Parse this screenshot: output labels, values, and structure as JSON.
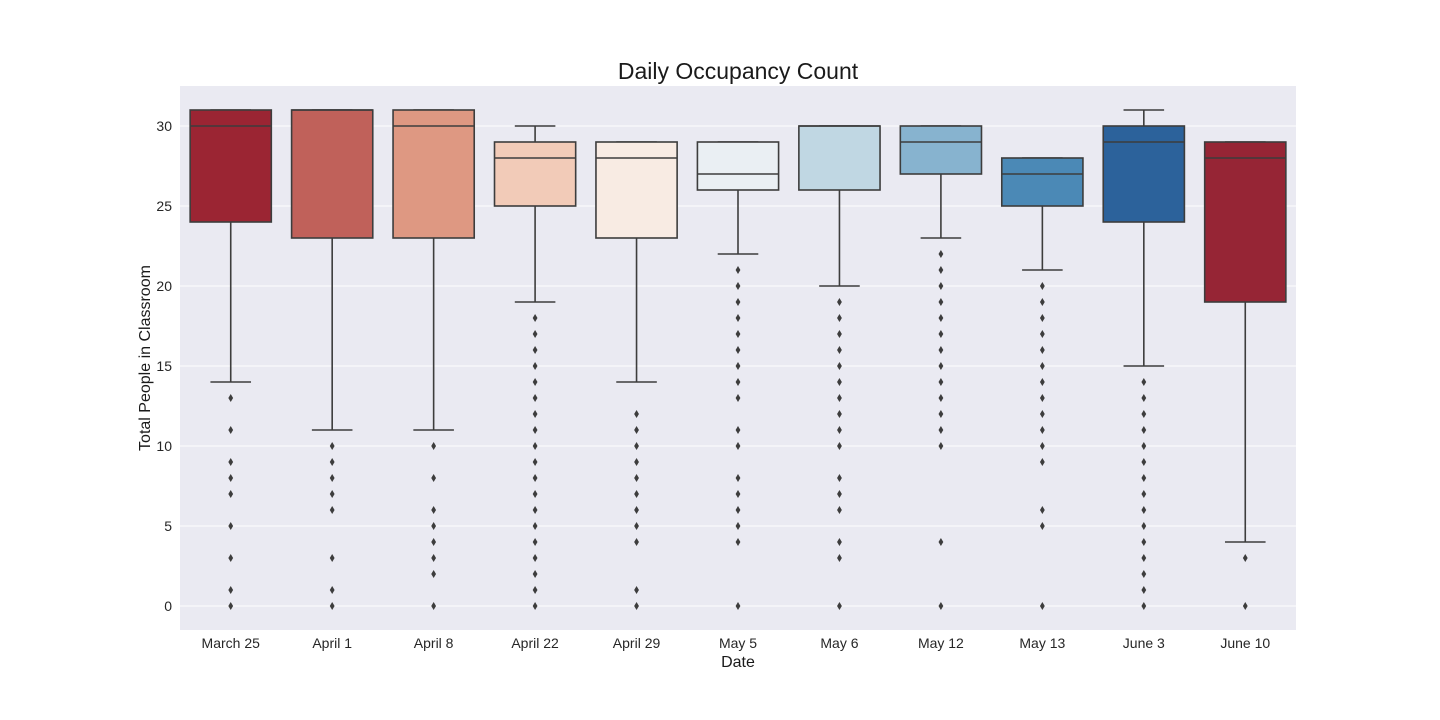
{
  "chart_data": {
    "type": "box",
    "title": "Daily Occupancy Count",
    "xlabel": "Date",
    "ylabel": "Total People in Classroom",
    "ylim": [
      -1.5,
      32.5
    ],
    "yticks": [
      0,
      5,
      10,
      15,
      20,
      25,
      30
    ],
    "grid": true,
    "categories": [
      "March 25",
      "April 1",
      "April 8",
      "April 22",
      "April 29",
      "May 5",
      "May 6",
      "May 12",
      "May 13",
      "June 3",
      "June 10"
    ],
    "colors": [
      "#9b2533",
      "#c0615a",
      "#de9882",
      "#f2cbb8",
      "#f8ebe3",
      "#eaeff3",
      "#c0d7e3",
      "#87b3cf",
      "#4b89b6",
      "#2c629b",
      "#962535"
    ],
    "boxes": [
      {
        "whislo": 14,
        "q1": 24,
        "med": 30,
        "q3": 31,
        "whishi": 31,
        "fliers": [
          0,
          1,
          3,
          5,
          7,
          8,
          9,
          11,
          13
        ]
      },
      {
        "whislo": 11,
        "q1": 23,
        "med": 31,
        "q3": 31,
        "whishi": 31,
        "fliers": [
          0,
          1,
          3,
          6,
          7,
          8,
          9,
          10
        ]
      },
      {
        "whislo": 11,
        "q1": 23,
        "med": 30,
        "q3": 31,
        "whishi": 31,
        "fliers": [
          0,
          2,
          3,
          4,
          5,
          6,
          8,
          10
        ]
      },
      {
        "whislo": 19,
        "q1": 25,
        "med": 28,
        "q3": 29,
        "whishi": 30,
        "fliers": [
          0,
          1,
          2,
          3,
          4,
          5,
          6,
          7,
          8,
          9,
          10,
          11,
          12,
          13,
          14,
          15,
          16,
          17,
          18
        ]
      },
      {
        "whislo": 14,
        "q1": 23,
        "med": 28,
        "q3": 29,
        "whishi": 29,
        "fliers": [
          0,
          1,
          4,
          5,
          6,
          7,
          8,
          9,
          10,
          11,
          12
        ]
      },
      {
        "whislo": 22,
        "q1": 26,
        "med": 27,
        "q3": 29,
        "whishi": 29,
        "fliers": [
          0,
          4,
          5,
          6,
          7,
          8,
          10,
          11,
          13,
          14,
          15,
          16,
          17,
          18,
          19,
          20,
          21
        ]
      },
      {
        "whislo": 20,
        "q1": 26,
        "med": 30,
        "q3": 30,
        "whishi": 30,
        "fliers": [
          0,
          3,
          4,
          6,
          7,
          8,
          10,
          11,
          12,
          13,
          14,
          15,
          16,
          17,
          18,
          19
        ]
      },
      {
        "whislo": 23,
        "q1": 27,
        "med": 29,
        "q3": 30,
        "whishi": 30,
        "fliers": [
          0,
          4,
          10,
          11,
          12,
          13,
          14,
          15,
          16,
          17,
          18,
          19,
          20,
          21,
          22
        ]
      },
      {
        "whislo": 21,
        "q1": 25,
        "med": 27,
        "q3": 28,
        "whishi": 28,
        "fliers": [
          0,
          5,
          6,
          9,
          10,
          11,
          12,
          13,
          14,
          15,
          16,
          17,
          18,
          19,
          20
        ]
      },
      {
        "whislo": 15,
        "q1": 24,
        "med": 29,
        "q3": 30,
        "whishi": 31,
        "fliers": [
          0,
          1,
          2,
          3,
          4,
          5,
          6,
          7,
          8,
          9,
          10,
          11,
          12,
          13,
          14
        ]
      },
      {
        "whislo": 4,
        "q1": 19,
        "med": 28,
        "q3": 29,
        "whishi": 29,
        "fliers": [
          0,
          3
        ]
      }
    ]
  }
}
